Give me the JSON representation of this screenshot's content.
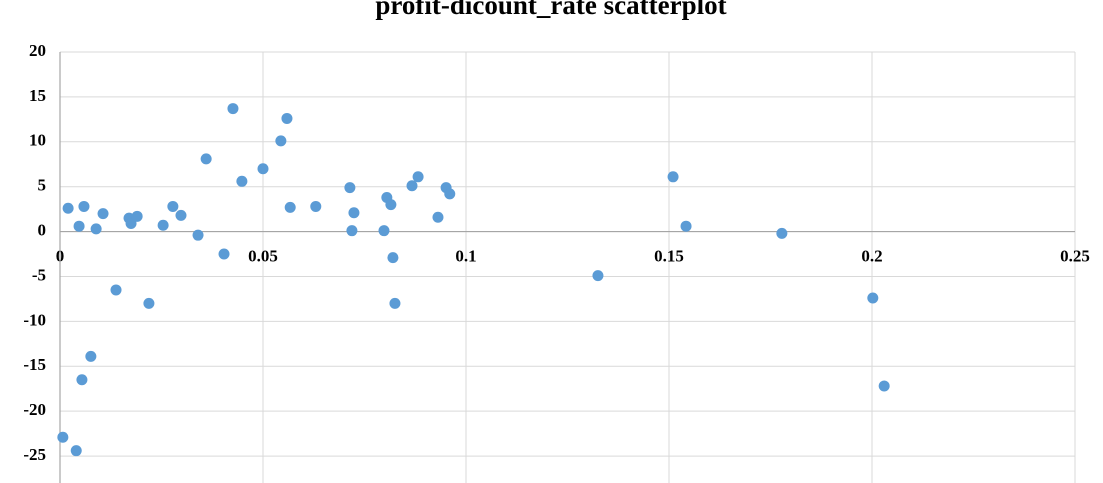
{
  "chart_data": {
    "type": "scatter",
    "title": "profit-dicount_rate scatterplot",
    "series": [
      {
        "color": "#5b9bd5",
        "x": [
          0.0007,
          0.002,
          0.004,
          0.0047,
          0.0054,
          0.0059,
          0.0076,
          0.0089,
          0.0106,
          0.0138,
          0.017,
          0.0175,
          0.019,
          0.0219,
          0.0254,
          0.0278,
          0.0298,
          0.034,
          0.036,
          0.0404,
          0.0426,
          0.0448,
          0.05,
          0.0544,
          0.0559,
          0.0567,
          0.063,
          0.0714,
          0.0719,
          0.0724,
          0.0798,
          0.0805,
          0.0815,
          0.082,
          0.0825,
          0.0867,
          0.0882,
          0.0931,
          0.0951,
          0.096,
          0.1325,
          0.151,
          0.1542,
          0.1778,
          0.2002,
          0.203
        ],
        "values": [
          -22.9,
          2.6,
          -24.4,
          0.6,
          -16.5,
          2.8,
          -13.9,
          0.3,
          2.0,
          -6.5,
          1.5,
          0.9,
          1.7,
          -8.0,
          0.7,
          2.8,
          1.8,
          -0.4,
          8.1,
          -2.5,
          13.7,
          5.6,
          7.0,
          10.1,
          12.6,
          2.7,
          2.8,
          4.9,
          0.1,
          2.1,
          0.1,
          3.8,
          3.0,
          -2.9,
          -8.0,
          5.1,
          6.1,
          1.6,
          4.9,
          4.2,
          -4.9,
          6.1,
          0.6,
          -0.2,
          -7.4,
          -17.2
        ]
      }
    ],
    "xlim": [
      0,
      0.25
    ],
    "xticks": [
      0,
      0.05,
      0.1,
      0.15,
      0.2,
      0.25
    ],
    "ylim": [
      -28,
      20
    ],
    "yticks": [
      -25,
      -20,
      -15,
      -10,
      -5,
      0,
      5,
      10,
      15,
      20
    ],
    "grid": true
  }
}
